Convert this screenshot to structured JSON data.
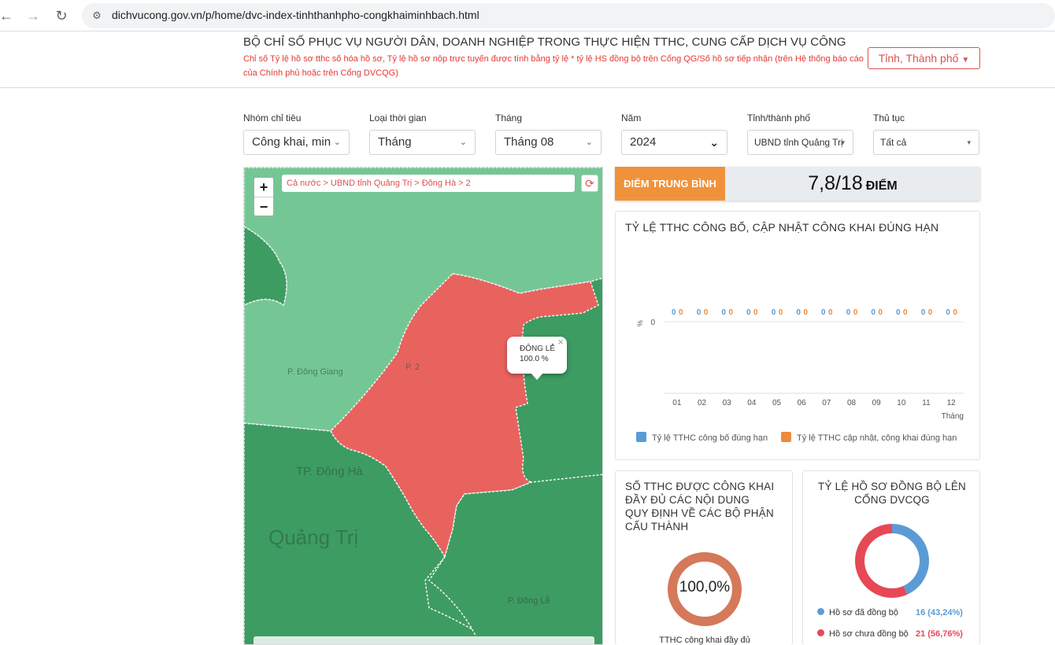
{
  "browser": {
    "back_icon": "arrow-left-icon",
    "forward_icon": "arrow-right-icon",
    "reload_icon": "reload-icon",
    "url": "dichvucong.gov.vn/p/home/dvc-index-tinhthanhpho-congkhaiminhbach.html"
  },
  "header": {
    "title": "BỘ CHỈ SỐ PHỤC VỤ NGƯỜI DÂN, DOANH NGHIỆP TRONG THỰC HIỆN TTHC, CUNG CẤP DỊCH VỤ CÔNG",
    "subtitle": "Chỉ số Tỷ lệ hồ sơ tthc số hóa hồ sơ, Tỷ lệ hồ sơ nộp trực tuyến được tính bằng tỷ lệ * tỷ lệ HS đồng bộ trên Cổng QG/Số hồ sơ tiếp nhận (trên Hệ thống báo cáo của Chính phủ hoặc trên Cổng DVCQG)",
    "province_button": "Tỉnh, Thành phố"
  },
  "filters": [
    {
      "label": "Nhóm chỉ tiêu",
      "value": "Công khai, minh"
    },
    {
      "label": "Loại thời gian",
      "value": "Tháng"
    },
    {
      "label": "Tháng",
      "value": "Tháng 08"
    },
    {
      "label": "Năm",
      "value": "2024"
    },
    {
      "label": "Tỉnh/thành phố",
      "value": "UBND tỉnh Quảng Trị"
    },
    {
      "label": "Thủ tục",
      "value": "Tất cả"
    }
  ],
  "map": {
    "zoom_in": "+",
    "zoom_out": "−",
    "breadcrumb": "Cả nước > UBND tỉnh Quảng Trị > Đông Hà > 2",
    "refresh_icon": "refresh-icon",
    "popup_name": "ĐÔNG LỄ",
    "popup_value": "100.0 %",
    "popup_close": "×",
    "labels": {
      "dong_giang": "P. Đông Giang",
      "p2": "P. 2",
      "tp_dong_ha": "TP. Đông Hà",
      "quang_tri": "Quảng Trị",
      "dong_le": "P. Đông Lễ"
    },
    "colors": {
      "selected": "#e8635e",
      "light": "#74c794",
      "dark": "#3d9c62"
    }
  },
  "score": {
    "label": "ĐIỂM TRUNG BÌNH",
    "value": "7,8/18",
    "unit": "ĐIỂM"
  },
  "chart_data": [
    {
      "type": "bar",
      "title": "TỶ LỆ TTHC CÔNG BỐ, CẬP NHẬT CÔNG KHAI ĐÚNG HẠN",
      "categories": [
        "01",
        "02",
        "03",
        "04",
        "05",
        "06",
        "07",
        "08",
        "09",
        "10",
        "11",
        "12"
      ],
      "xlabel": "Tháng",
      "ylabel": "%",
      "yticks": [
        "0"
      ],
      "series": [
        {
          "name": "Tỷ lệ TTHC công bố đúng hạn",
          "color": "#5b9bd5",
          "values": [
            0,
            0,
            0,
            0,
            0,
            0,
            0,
            0,
            0,
            0,
            0,
            0
          ]
        },
        {
          "name": "Tỷ lệ TTHC cập nhật, công khai đúng hạn",
          "color": "#ed8b3b",
          "values": [
            0,
            0,
            0,
            0,
            0,
            0,
            0,
            0,
            0,
            0,
            0,
            0
          ]
        }
      ],
      "legend": "bottom"
    },
    {
      "type": "pie",
      "title": "SỐ TTHC ĐƯỢC CÔNG KHAI ĐẦY ĐỦ CÁC NỘI DUNG QUY ĐỊNH VỀ CÁC BỘ PHẬN CẤU THÀNH",
      "center_label": "100,0%",
      "caption": "TTHC công khai đầy đủ",
      "series": [
        {
          "name": "TTHC công khai đầy đủ",
          "value": 100,
          "color": "#d4795a"
        }
      ]
    },
    {
      "type": "pie",
      "title": "TỶ LỆ HỒ SƠ ĐỒNG BỘ LÊN CỔNG DVCQG",
      "series": [
        {
          "name": "Hồ sơ đã đồng bộ",
          "value": 16,
          "label": "16 (43,24%)",
          "color": "#5b9bd5"
        },
        {
          "name": "Hồ sơ chưa đồng bộ",
          "value": 21,
          "label": "21 (56,76%)",
          "color": "#e74856"
        }
      ]
    }
  ]
}
